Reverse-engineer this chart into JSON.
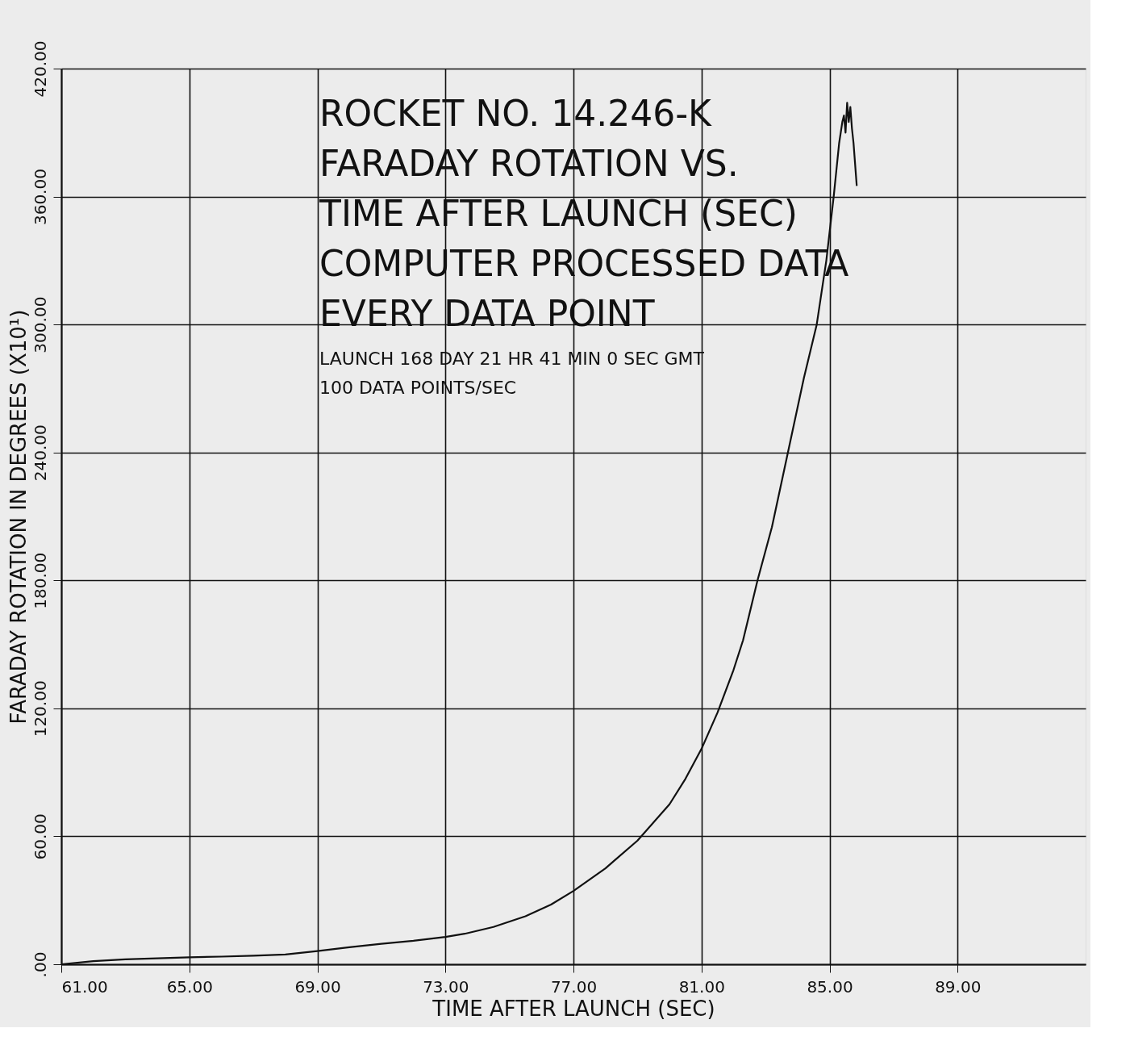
{
  "chart_data": {
    "type": "line",
    "title": "ROCKET NO. 14.246-K\nFARADAY ROTATION VS.\nTIME AFTER LAUNCH (SEC)\nCOMPUTER PROCESSED DATA\nEVERY DATA POINT",
    "annotations": [
      "LAUNCH  168  DAY    21  HR   41  MIN     0  SEC GMT",
      "100  DATA POINTS/SEC"
    ],
    "xlabel": "TIME AFTER LAUNCH (SEC)",
    "ylabel": "FARADAY ROTATION IN DEGREES (X10¹)",
    "series": [
      {
        "color": "#111111",
        "x": [
          61,
          62,
          63,
          64,
          65,
          66,
          67,
          68,
          69,
          70,
          71,
          72,
          73,
          73.6,
          74.5,
          75.5,
          76.3,
          77,
          78,
          79,
          80,
          80.5,
          81,
          81.5,
          82,
          82.3,
          82.75,
          83.2,
          83.7,
          84.2,
          84.6,
          84.9,
          85.13,
          85.3,
          85.4,
          85.45,
          85.5,
          85.55,
          85.6,
          85.65,
          85.7,
          85.75,
          85.85
        ],
        "values": [
          0,
          1.5,
          2.3,
          2.8,
          3.3,
          3.6,
          4,
          4.6,
          6.2,
          8,
          9.6,
          11,
          12.8,
          14.3,
          17.5,
          22.5,
          28,
          34.4,
          45,
          58,
          75,
          87,
          101,
          118,
          138,
          152,
          180,
          205,
          240,
          275,
          300,
          330,
          360,
          385,
          395,
          398,
          390,
          404,
          395,
          402,
          392,
          385,
          365
        ]
      }
    ],
    "xlim": [
      61,
      93
    ],
    "ylim": [
      0,
      420
    ],
    "xticks": [
      {
        "value": 61,
        "label": "61.00"
      },
      {
        "value": 65,
        "label": "65.00"
      },
      {
        "value": 69,
        "label": "69.00"
      },
      {
        "value": 73,
        "label": "73.00"
      },
      {
        "value": 77,
        "label": "77.00"
      },
      {
        "value": 81,
        "label": "81.00"
      },
      {
        "value": 85,
        "label": "85.00"
      },
      {
        "value": 89,
        "label": "89.00"
      }
    ],
    "yticks": [
      {
        "value": 0,
        "label": ".00"
      },
      {
        "value": 60,
        "label": "60.00"
      },
      {
        "value": 120,
        "label": "120.00"
      },
      {
        "value": 180,
        "label": "180.00"
      },
      {
        "value": 240,
        "label": "240.00"
      },
      {
        "value": 300,
        "label": "300.00"
      },
      {
        "value": 360,
        "label": "360.00"
      },
      {
        "value": 420,
        "label": "420.00"
      }
    ],
    "grid": true,
    "legend": false,
    "marker": "none",
    "line_style": "solid"
  }
}
